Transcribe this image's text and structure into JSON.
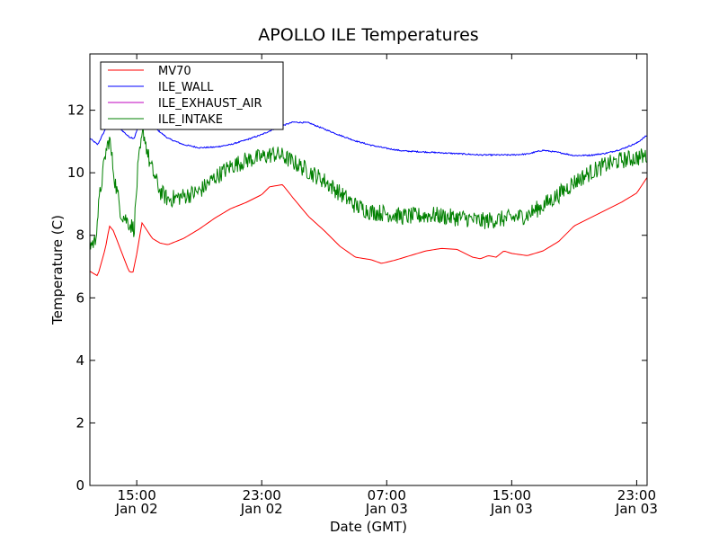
{
  "chart_data": {
    "type": "line",
    "title": "APOLLO ILE Temperatures",
    "xlabel": "Date (GMT)",
    "ylabel": "Temperature (C)",
    "xlim": [
      "2014-01-02 12:00",
      "2014-01-03 23:40"
    ],
    "ylim": [
      0,
      13.8
    ],
    "grid": false,
    "legend_position": "top-left",
    "yticks": [
      0,
      2,
      4,
      6,
      8,
      10,
      12
    ],
    "xticks": [
      {
        "at": "2014-01-02 15:00",
        "time": "15:00",
        "date": "Jan 02"
      },
      {
        "at": "2014-01-02 23:00",
        "time": "23:00",
        "date": "Jan 02"
      },
      {
        "at": "2014-01-03 07:00",
        "time": "07:00",
        "date": "Jan 03"
      },
      {
        "at": "2014-01-03 15:00",
        "time": "15:00",
        "date": "Jan 03"
      },
      {
        "at": "2014-01-03 23:00",
        "time": "23:00",
        "date": "Jan 03"
      }
    ],
    "series": [
      {
        "name": "MV70",
        "color": "#ff0000",
        "noise": 0,
        "points": [
          [
            "2014-01-02 12:00",
            6.85
          ],
          [
            "2014-01-02 12:30",
            6.7
          ],
          [
            "2014-01-02 13:00",
            7.6
          ],
          [
            "2014-01-02 13:15",
            8.3
          ],
          [
            "2014-01-02 13:30",
            8.15
          ],
          [
            "2014-01-02 14:00",
            7.5
          ],
          [
            "2014-01-02 14:30",
            6.85
          ],
          [
            "2014-01-02 14:45",
            6.8
          ],
          [
            "2014-01-02 15:00",
            7.4
          ],
          [
            "2014-01-02 15:20",
            8.4
          ],
          [
            "2014-01-02 16:00",
            7.9
          ],
          [
            "2014-01-02 16:30",
            7.75
          ],
          [
            "2014-01-02 17:00",
            7.7
          ],
          [
            "2014-01-02 18:00",
            7.9
          ],
          [
            "2014-01-02 19:00",
            8.2
          ],
          [
            "2014-01-02 20:00",
            8.55
          ],
          [
            "2014-01-02 21:00",
            8.85
          ],
          [
            "2014-01-02 22:00",
            9.05
          ],
          [
            "2014-01-02 23:00",
            9.3
          ],
          [
            "2014-01-02 23:30",
            9.55
          ],
          [
            "2014-01-03 00:20",
            9.62
          ],
          [
            "2014-01-03 01:00",
            9.2
          ],
          [
            "2014-01-03 02:00",
            8.6
          ],
          [
            "2014-01-03 03:00",
            8.15
          ],
          [
            "2014-01-03 04:00",
            7.65
          ],
          [
            "2014-01-03 05:00",
            7.3
          ],
          [
            "2014-01-03 06:00",
            7.22
          ],
          [
            "2014-01-03 06:40",
            7.1
          ],
          [
            "2014-01-03 07:30",
            7.2
          ],
          [
            "2014-01-03 08:30",
            7.35
          ],
          [
            "2014-01-03 09:30",
            7.5
          ],
          [
            "2014-01-03 10:30",
            7.58
          ],
          [
            "2014-01-03 11:30",
            7.55
          ],
          [
            "2014-01-03 12:30",
            7.3
          ],
          [
            "2014-01-03 13:00",
            7.25
          ],
          [
            "2014-01-03 13:30",
            7.35
          ],
          [
            "2014-01-03 14:00",
            7.3
          ],
          [
            "2014-01-03 14:30",
            7.5
          ],
          [
            "2014-01-03 15:00",
            7.42
          ],
          [
            "2014-01-03 16:00",
            7.35
          ],
          [
            "2014-01-03 17:00",
            7.5
          ],
          [
            "2014-01-03 18:00",
            7.8
          ],
          [
            "2014-01-03 19:00",
            8.3
          ],
          [
            "2014-01-03 20:00",
            8.55
          ],
          [
            "2014-01-03 21:00",
            8.8
          ],
          [
            "2014-01-03 22:00",
            9.05
          ],
          [
            "2014-01-03 23:00",
            9.35
          ],
          [
            "2014-01-03 23:40",
            9.85
          ]
        ]
      },
      {
        "name": "ILE_WALL",
        "color": "#0000ff",
        "noise": 0.02,
        "points": [
          [
            "2014-01-02 12:00",
            11.1
          ],
          [
            "2014-01-02 12:30",
            10.9
          ],
          [
            "2014-01-02 13:00",
            11.4
          ],
          [
            "2014-01-02 13:20",
            11.8
          ],
          [
            "2014-01-02 13:45",
            11.5
          ],
          [
            "2014-01-02 14:30",
            11.15
          ],
          [
            "2014-01-02 14:50",
            11.1
          ],
          [
            "2014-01-02 15:15",
            11.7
          ],
          [
            "2014-01-02 15:40",
            11.9
          ],
          [
            "2014-01-02 16:00",
            11.5
          ],
          [
            "2014-01-02 17:00",
            11.1
          ],
          [
            "2014-01-02 18:00",
            10.9
          ],
          [
            "2014-01-02 19:00",
            10.8
          ],
          [
            "2014-01-02 20:00",
            10.82
          ],
          [
            "2014-01-02 21:00",
            10.9
          ],
          [
            "2014-01-02 22:00",
            11.05
          ],
          [
            "2014-01-02 23:00",
            11.22
          ],
          [
            "2014-01-03 00:00",
            11.45
          ],
          [
            "2014-01-03 01:00",
            11.62
          ],
          [
            "2014-01-03 02:00",
            11.6
          ],
          [
            "2014-01-03 03:00",
            11.4
          ],
          [
            "2014-01-03 04:00",
            11.2
          ],
          [
            "2014-01-03 05:00",
            11.02
          ],
          [
            "2014-01-03 06:00",
            10.88
          ],
          [
            "2014-01-03 07:00",
            10.78
          ],
          [
            "2014-01-03 08:00",
            10.7
          ],
          [
            "2014-01-03 10:00",
            10.65
          ],
          [
            "2014-01-03 12:00",
            10.6
          ],
          [
            "2014-01-03 13:00",
            10.57
          ],
          [
            "2014-01-03 15:00",
            10.57
          ],
          [
            "2014-01-03 16:00",
            10.6
          ],
          [
            "2014-01-03 17:00",
            10.72
          ],
          [
            "2014-01-03 18:00",
            10.65
          ],
          [
            "2014-01-03 19:00",
            10.55
          ],
          [
            "2014-01-03 20:00",
            10.56
          ],
          [
            "2014-01-03 21:00",
            10.62
          ],
          [
            "2014-01-03 22:00",
            10.75
          ],
          [
            "2014-01-03 23:00",
            10.95
          ],
          [
            "2014-01-03 23:40",
            11.2
          ]
        ]
      },
      {
        "name": "ILE_EXHAUST_AIR",
        "color": "#bf00bf",
        "noise": 0,
        "points": []
      },
      {
        "name": "ILE_INTAKE",
        "color": "#008000",
        "noise": 0.28,
        "points": [
          [
            "2014-01-02 12:00",
            7.7
          ],
          [
            "2014-01-02 12:20",
            7.8
          ],
          [
            "2014-01-02 12:40",
            9.4
          ],
          [
            "2014-01-02 13:00",
            10.6
          ],
          [
            "2014-01-02 13:15",
            11.1
          ],
          [
            "2014-01-02 13:35",
            9.8
          ],
          [
            "2014-01-02 14:00",
            8.7
          ],
          [
            "2014-01-02 14:30",
            8.4
          ],
          [
            "2014-01-02 14:50",
            8.2
          ],
          [
            "2014-01-02 15:05",
            10.2
          ],
          [
            "2014-01-02 15:25",
            11.35
          ],
          [
            "2014-01-02 15:50",
            10.3
          ],
          [
            "2014-01-02 16:30",
            9.4
          ],
          [
            "2014-01-02 17:00",
            9.15
          ],
          [
            "2014-01-02 18:00",
            9.25
          ],
          [
            "2014-01-02 19:00",
            9.4
          ],
          [
            "2014-01-02 20:00",
            9.85
          ],
          [
            "2014-01-02 21:00",
            10.2
          ],
          [
            "2014-01-02 22:00",
            10.4
          ],
          [
            "2014-01-02 23:00",
            10.5
          ],
          [
            "2014-01-02 23:45",
            10.6
          ],
          [
            "2014-01-03 00:15",
            10.55
          ],
          [
            "2014-01-03 01:00",
            10.35
          ],
          [
            "2014-01-03 02:00",
            10.05
          ],
          [
            "2014-01-03 03:00",
            9.75
          ],
          [
            "2014-01-03 04:00",
            9.35
          ],
          [
            "2014-01-03 05:00",
            8.95
          ],
          [
            "2014-01-03 06:00",
            8.75
          ],
          [
            "2014-01-03 07:00",
            8.7
          ],
          [
            "2014-01-03 08:00",
            8.6
          ],
          [
            "2014-01-03 09:00",
            8.62
          ],
          [
            "2014-01-03 10:00",
            8.65
          ],
          [
            "2014-01-03 11:00",
            8.58
          ],
          [
            "2014-01-03 12:00",
            8.55
          ],
          [
            "2014-01-03 13:00",
            8.45
          ],
          [
            "2014-01-03 14:00",
            8.5
          ],
          [
            "2014-01-03 15:00",
            8.55
          ],
          [
            "2014-01-03 16:00",
            8.65
          ],
          [
            "2014-01-03 17:00",
            8.95
          ],
          [
            "2014-01-03 18:00",
            9.3
          ],
          [
            "2014-01-03 19:00",
            9.7
          ],
          [
            "2014-01-03 20:00",
            10.0
          ],
          [
            "2014-01-03 21:00",
            10.25
          ],
          [
            "2014-01-03 22:00",
            10.4
          ],
          [
            "2014-01-03 23:00",
            10.48
          ],
          [
            "2014-01-03 23:40",
            10.55
          ]
        ]
      }
    ]
  }
}
